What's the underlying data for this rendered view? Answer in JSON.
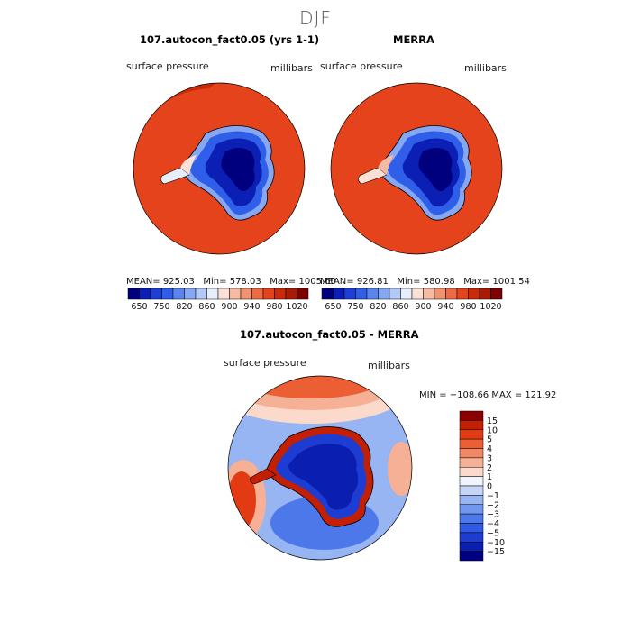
{
  "suptitle": "DJF",
  "panels": {
    "model": {
      "title": "107.autocon_fact0.05 (yrs 1-1)",
      "variable": "surface pressure",
      "units": "millibars",
      "stats": {
        "mean": "925.03",
        "min": "578.03",
        "max": "1005.60"
      }
    },
    "obs": {
      "title": "MERRA",
      "variable": "surface pressure",
      "units": "millibars",
      "stats": {
        "mean": "926.81",
        "min": "580.98",
        "max": "1001.54"
      }
    },
    "diff": {
      "title": "107.autocon_fact0.05 - MERRA",
      "variable": "surface pressure",
      "units": "millibars",
      "minmax": "MIN = −108.66  MAX = 121.92"
    }
  },
  "labels": {
    "mean": "MEAN=",
    "min": "Min=",
    "max": "Max="
  },
  "chart_data": [
    {
      "type": "heatmap",
      "projection": "south polar stereographic",
      "title": "107.autocon_fact0.05 (yrs 1-1)",
      "field": "surface pressure",
      "units": "millibars",
      "mean": 925.03,
      "min": 578.03,
      "max": 1005.6,
      "levels": [
        650,
        700,
        750,
        800,
        820,
        840,
        860,
        880,
        900,
        920,
        940,
        960,
        980,
        1000,
        1020
      ],
      "tick_labels": [
        "650",
        "750",
        "820",
        "860",
        "900",
        "940",
        "980",
        "1020"
      ],
      "colors": [
        "#00007f",
        "#0b1fb4",
        "#1e3fd6",
        "#2f5ee8",
        "#5a85ef",
        "#86a8f3",
        "#b3c9f7",
        "#e6eefb",
        "#fbe0d6",
        "#f6b9a2",
        "#f19270",
        "#ec6a44",
        "#e4431c",
        "#c92a08",
        "#a81a03",
        "#7f0000"
      ],
      "ocean_value": "980-1000"
    },
    {
      "type": "heatmap",
      "projection": "south polar stereographic",
      "title": "MERRA",
      "field": "surface pressure",
      "units": "millibars",
      "mean": 926.81,
      "min": 580.98,
      "max": 1001.54,
      "levels": [
        650,
        700,
        750,
        800,
        820,
        840,
        860,
        880,
        900,
        920,
        940,
        960,
        980,
        1000,
        1020
      ],
      "tick_labels": [
        "650",
        "750",
        "820",
        "860",
        "900",
        "940",
        "980",
        "1020"
      ],
      "colors": [
        "#00007f",
        "#0b1fb4",
        "#1e3fd6",
        "#2f5ee8",
        "#5a85ef",
        "#86a8f3",
        "#b3c9f7",
        "#e6eefb",
        "#fbe0d6",
        "#f6b9a2",
        "#f19270",
        "#ec6a44",
        "#e4431c",
        "#c92a08",
        "#a81a03",
        "#7f0000"
      ],
      "ocean_value": "980-1000"
    },
    {
      "type": "heatmap",
      "projection": "south polar stereographic",
      "title": "107.autocon_fact0.05 - MERRA",
      "field": "surface pressure",
      "units": "millibars",
      "min": -108.66,
      "max": 121.92,
      "levels": [
        -15,
        -10,
        -5,
        -4,
        -3,
        -2,
        -1,
        0,
        1,
        2,
        3,
        4,
        5,
        10,
        15
      ],
      "tick_labels": [
        "15",
        "10",
        "5",
        "4",
        "3",
        "2",
        "1",
        "0",
        "−1",
        "−2",
        "−3",
        "−4",
        "−5",
        "−10",
        "−15"
      ],
      "colors": [
        "#000080",
        "#0a1eb0",
        "#1c3cd2",
        "#3059e4",
        "#4d78ea",
        "#7197ef",
        "#98b5f3",
        "#c4d5f8",
        "#eef3fc",
        "#fbd9cb",
        "#f6b095",
        "#f18763",
        "#ec5f35",
        "#e23a12",
        "#c31f04",
        "#8b0000"
      ]
    }
  ]
}
